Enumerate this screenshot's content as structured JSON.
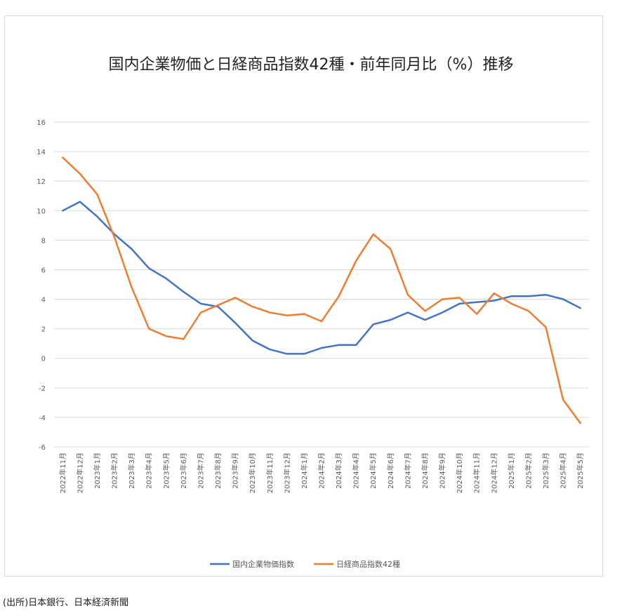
{
  "source_note": "(出所)日本銀行、日本経済新聞",
  "chart_data": {
    "type": "line",
    "title": "国内企業物価と日経商品指数42種・前年同月比（%）推移",
    "xlabel": "",
    "ylabel": "",
    "ylim": [
      -6,
      16
    ],
    "yticks": [
      16,
      14,
      12,
      10,
      8,
      6,
      4,
      2,
      0,
      -2,
      -4,
      -6
    ],
    "grid": true,
    "legend_position": "bottom",
    "categories": [
      "2022年11月",
      "2022年12月",
      "2023年1月",
      "2023年2月",
      "2023年3月",
      "2023年4月",
      "2023年5月",
      "2023年6月",
      "2023年7月",
      "2023年8月",
      "2023年9月",
      "2023年10月",
      "2023年11月",
      "2023年12月",
      "2024年1月",
      "2024年2月",
      "2024年3月",
      "2024年4月",
      "2024年5月",
      "2024年6月",
      "2024年7月",
      "2024年8月",
      "2024年9月",
      "2024年10月",
      "2024年11月",
      "2024年12月",
      "2025年1月",
      "2025年2月",
      "2025年3月",
      "2025年4月",
      "2025年5月"
    ],
    "series": [
      {
        "name": "国内企業物価指数",
        "color": "#4472c4",
        "values": [
          10.0,
          10.6,
          9.6,
          8.4,
          7.4,
          6.1,
          5.4,
          4.5,
          3.7,
          3.5,
          2.4,
          1.2,
          0.6,
          0.3,
          0.3,
          0.7,
          0.9,
          0.9,
          2.3,
          2.6,
          3.1,
          2.6,
          3.1,
          3.7,
          3.8,
          3.9,
          4.2,
          4.2,
          4.3,
          4.0,
          3.4
        ]
      },
      {
        "name": "日経商品指数42種",
        "color": "#ed7d31",
        "values": [
          13.6,
          12.5,
          11.1,
          8.2,
          4.8,
          2.0,
          1.5,
          1.3,
          3.1,
          3.6,
          4.1,
          3.5,
          3.1,
          2.9,
          3.0,
          2.5,
          4.2,
          6.6,
          8.4,
          7.4,
          4.3,
          3.2,
          4.0,
          4.1,
          3.0,
          4.4,
          3.7,
          3.2,
          2.1,
          -2.8,
          -4.4
        ]
      }
    ]
  }
}
